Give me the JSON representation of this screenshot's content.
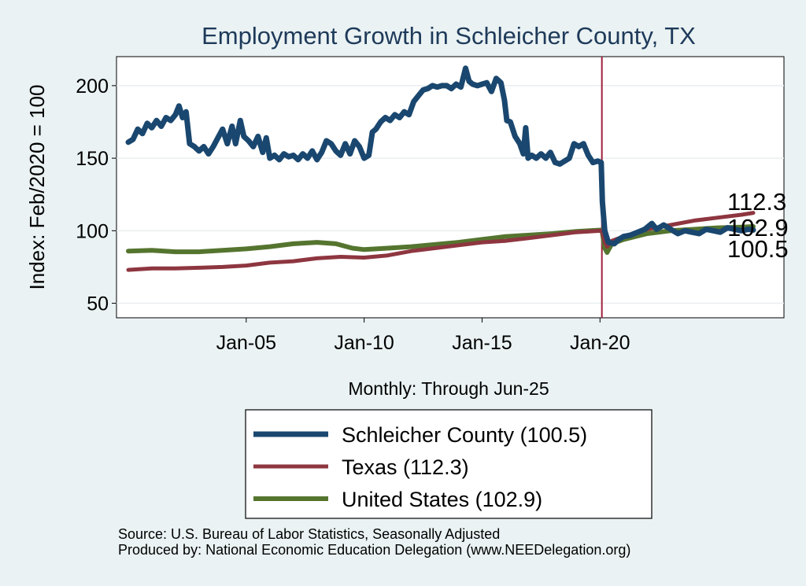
{
  "chart_data": {
    "type": "line",
    "title": "Employment Growth in Schleicher  County, TX",
    "xlabel": "Monthly: Through Jun-25",
    "ylabel": "Index: Feb/2020 = 100",
    "ylim": [
      40,
      220
    ],
    "xlim": [
      1999.5,
      2027.8
    ],
    "yticks": [
      50,
      100,
      150,
      200
    ],
    "xticks": [
      {
        "label": "Jan-05",
        "value": 2005.0
      },
      {
        "label": "Jan-10",
        "value": 2010.0
      },
      {
        "label": "Jan-15",
        "value": 2015.0
      },
      {
        "label": "Jan-20",
        "value": 2020.0
      }
    ],
    "reference_line": {
      "x": 2020.08,
      "color": "#a0203c"
    },
    "end_labels": [
      "112.3",
      "102.9",
      "100.5"
    ],
    "series": [
      {
        "name": "Schleicher  County",
        "legend": "Schleicher  County (100.5)",
        "color": "#1a476f",
        "width": 7,
        "points": [
          [
            2000.0,
            161
          ],
          [
            2000.2,
            163
          ],
          [
            2000.4,
            170
          ],
          [
            2000.6,
            167
          ],
          [
            2000.8,
            174
          ],
          [
            2001.0,
            171
          ],
          [
            2001.2,
            176
          ],
          [
            2001.4,
            172
          ],
          [
            2001.6,
            178
          ],
          [
            2001.8,
            176
          ],
          [
            2002.0,
            180
          ],
          [
            2002.15,
            186
          ],
          [
            2002.3,
            178
          ],
          [
            2002.45,
            182
          ],
          [
            2002.6,
            160
          ],
          [
            2002.8,
            158
          ],
          [
            2003.0,
            155
          ],
          [
            2003.2,
            158
          ],
          [
            2003.4,
            153
          ],
          [
            2003.6,
            158
          ],
          [
            2003.8,
            164
          ],
          [
            2004.0,
            170
          ],
          [
            2004.2,
            160
          ],
          [
            2004.4,
            172
          ],
          [
            2004.55,
            160
          ],
          [
            2004.75,
            176
          ],
          [
            2004.9,
            165
          ],
          [
            2005.1,
            162
          ],
          [
            2005.3,
            158
          ],
          [
            2005.5,
            165
          ],
          [
            2005.7,
            154
          ],
          [
            2005.85,
            164
          ],
          [
            2006.0,
            150
          ],
          [
            2006.2,
            152
          ],
          [
            2006.4,
            149
          ],
          [
            2006.6,
            153
          ],
          [
            2006.8,
            151
          ],
          [
            2007.0,
            152
          ],
          [
            2007.2,
            149
          ],
          [
            2007.4,
            153
          ],
          [
            2007.6,
            150
          ],
          [
            2007.8,
            155
          ],
          [
            2008.0,
            149
          ],
          [
            2008.2,
            154
          ],
          [
            2008.4,
            162
          ],
          [
            2008.6,
            160
          ],
          [
            2008.8,
            155
          ],
          [
            2009.0,
            152
          ],
          [
            2009.2,
            160
          ],
          [
            2009.4,
            153
          ],
          [
            2009.6,
            162
          ],
          [
            2009.8,
            158
          ],
          [
            2010.0,
            150
          ],
          [
            2010.2,
            152
          ],
          [
            2010.35,
            168
          ],
          [
            2010.5,
            170
          ],
          [
            2010.7,
            175
          ],
          [
            2010.9,
            178
          ],
          [
            2011.1,
            176
          ],
          [
            2011.3,
            180
          ],
          [
            2011.5,
            178
          ],
          [
            2011.7,
            182
          ],
          [
            2011.9,
            180
          ],
          [
            2012.1,
            189
          ],
          [
            2012.3,
            193
          ],
          [
            2012.5,
            197
          ],
          [
            2012.7,
            198
          ],
          [
            2012.9,
            200
          ],
          [
            2013.1,
            199
          ],
          [
            2013.3,
            200
          ],
          [
            2013.5,
            200
          ],
          [
            2013.7,
            198
          ],
          [
            2013.9,
            201
          ],
          [
            2014.1,
            199
          ],
          [
            2014.3,
            212
          ],
          [
            2014.45,
            203
          ],
          [
            2014.6,
            201
          ],
          [
            2014.8,
            200
          ],
          [
            2015.0,
            201
          ],
          [
            2015.2,
            202
          ],
          [
            2015.4,
            196
          ],
          [
            2015.6,
            205
          ],
          [
            2015.8,
            202
          ],
          [
            2015.95,
            190
          ],
          [
            2016.05,
            176
          ],
          [
            2016.2,
            175
          ],
          [
            2016.4,
            165
          ],
          [
            2016.6,
            160
          ],
          [
            2016.75,
            153
          ],
          [
            2016.85,
            171
          ],
          [
            2016.95,
            150
          ],
          [
            2017.1,
            152
          ],
          [
            2017.3,
            150
          ],
          [
            2017.5,
            153
          ],
          [
            2017.7,
            150
          ],
          [
            2017.9,
            154
          ],
          [
            2018.1,
            147
          ],
          [
            2018.3,
            146
          ],
          [
            2018.5,
            148
          ],
          [
            2018.7,
            150
          ],
          [
            2018.9,
            160
          ],
          [
            2019.1,
            158
          ],
          [
            2019.3,
            160
          ],
          [
            2019.5,
            152
          ],
          [
            2019.7,
            147
          ],
          [
            2019.9,
            148
          ],
          [
            2020.05,
            147
          ],
          [
            2020.1,
            120
          ],
          [
            2020.2,
            100
          ],
          [
            2020.35,
            92
          ],
          [
            2020.6,
            91
          ],
          [
            2020.8,
            94
          ],
          [
            2021.0,
            96
          ],
          [
            2021.3,
            97
          ],
          [
            2021.6,
            99
          ],
          [
            2021.9,
            101
          ],
          [
            2022.2,
            105
          ],
          [
            2022.4,
            101
          ],
          [
            2022.7,
            104
          ],
          [
            2023.0,
            101
          ],
          [
            2023.3,
            98
          ],
          [
            2023.6,
            100
          ],
          [
            2023.9,
            99
          ],
          [
            2024.2,
            98
          ],
          [
            2024.5,
            101
          ],
          [
            2024.8,
            100
          ],
          [
            2025.1,
            99
          ],
          [
            2025.4,
            102
          ],
          [
            2025.7,
            101
          ],
          [
            2026.0,
            100
          ],
          [
            2026.3,
            101
          ],
          [
            2026.5,
            100.5
          ]
        ]
      },
      {
        "name": "Texas",
        "legend": "Texas (112.3)",
        "color": "#8e3640",
        "width": 5,
        "points": [
          [
            2000.0,
            73
          ],
          [
            2001.0,
            74
          ],
          [
            2002.0,
            74
          ],
          [
            2003.0,
            74.5
          ],
          [
            2004.0,
            75
          ],
          [
            2005.0,
            76
          ],
          [
            2006.0,
            78
          ],
          [
            2007.0,
            79
          ],
          [
            2008.0,
            81
          ],
          [
            2009.0,
            82
          ],
          [
            2010.0,
            81.5
          ],
          [
            2011.0,
            83
          ],
          [
            2012.0,
            86
          ],
          [
            2013.0,
            88
          ],
          [
            2014.0,
            90
          ],
          [
            2015.0,
            92
          ],
          [
            2016.0,
            93
          ],
          [
            2017.0,
            95
          ],
          [
            2018.0,
            97
          ],
          [
            2019.0,
            99
          ],
          [
            2020.08,
            100
          ],
          [
            2020.2,
            92
          ],
          [
            2020.3,
            89
          ],
          [
            2020.5,
            93
          ],
          [
            2021.0,
            96
          ],
          [
            2022.0,
            101
          ],
          [
            2023.0,
            104
          ],
          [
            2024.0,
            107
          ],
          [
            2025.0,
            109
          ],
          [
            2026.0,
            111
          ],
          [
            2026.5,
            112.3
          ]
        ]
      },
      {
        "name": "United States",
        "legend": "United States (102.9)",
        "color": "#55752f",
        "width": 6,
        "points": [
          [
            2000.0,
            86
          ],
          [
            2001.0,
            86.5
          ],
          [
            2002.0,
            85.5
          ],
          [
            2003.0,
            85.5
          ],
          [
            2004.0,
            86.5
          ],
          [
            2005.0,
            87.5
          ],
          [
            2006.0,
            89
          ],
          [
            2007.0,
            91
          ],
          [
            2008.0,
            92
          ],
          [
            2008.8,
            91
          ],
          [
            2009.5,
            88
          ],
          [
            2010.0,
            87
          ],
          [
            2011.0,
            88
          ],
          [
            2012.0,
            89
          ],
          [
            2013.0,
            90.5
          ],
          [
            2014.0,
            92
          ],
          [
            2015.0,
            94
          ],
          [
            2016.0,
            96
          ],
          [
            2017.0,
            97
          ],
          [
            2018.0,
            98
          ],
          [
            2019.0,
            99.5
          ],
          [
            2020.08,
            100.5
          ],
          [
            2020.2,
            88
          ],
          [
            2020.3,
            85
          ],
          [
            2020.5,
            91
          ],
          [
            2021.0,
            94
          ],
          [
            2022.0,
            98
          ],
          [
            2023.0,
            100
          ],
          [
            2024.0,
            101
          ],
          [
            2025.0,
            102
          ],
          [
            2026.0,
            102.5
          ],
          [
            2026.5,
            102.9
          ]
        ]
      }
    ]
  },
  "footer": {
    "source": "Source: U.S. Bureau of Labor Statistics, Seasonally Adjusted",
    "produced": "Produced by: National Economic Education Delegation (www.NEEDelegation.org)"
  }
}
